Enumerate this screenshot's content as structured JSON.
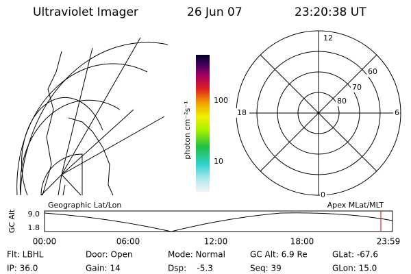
{
  "header": {
    "instrument": "Ultraviolet Imager",
    "date": "26 Jun 07",
    "time": "23:20:38 UT"
  },
  "colorbar": {
    "label": "photon cm⁻²s⁻¹",
    "ticks": [
      "100",
      "10"
    ]
  },
  "polar_plot": {
    "mlt_labels": [
      "12",
      "18",
      "6",
      "0"
    ],
    "lat_labels": [
      "60",
      "70",
      "80"
    ]
  },
  "altitude_plot": {
    "left_title": "Geographic Lat/Lon",
    "right_title": "Apex MLat/MLT",
    "y_label": "GC Alt",
    "y_ticks": [
      "9.0",
      "1.8"
    ],
    "x_ticks": [
      "00:00",
      "06:00",
      "12:00",
      "18:00",
      "23:59"
    ]
  },
  "status": {
    "rows": [
      [
        "Flt: LBHL",
        "Door: Open",
        "Mode: Normal",
        "GC Alt: 6.9 Re",
        "GLat: -67.6"
      ],
      [
        "IP: 36.0",
        "Gain: 14",
        "Dsp:    -5.3",
        "Seq: 39",
        "GLon: 15.0"
      ]
    ]
  }
}
